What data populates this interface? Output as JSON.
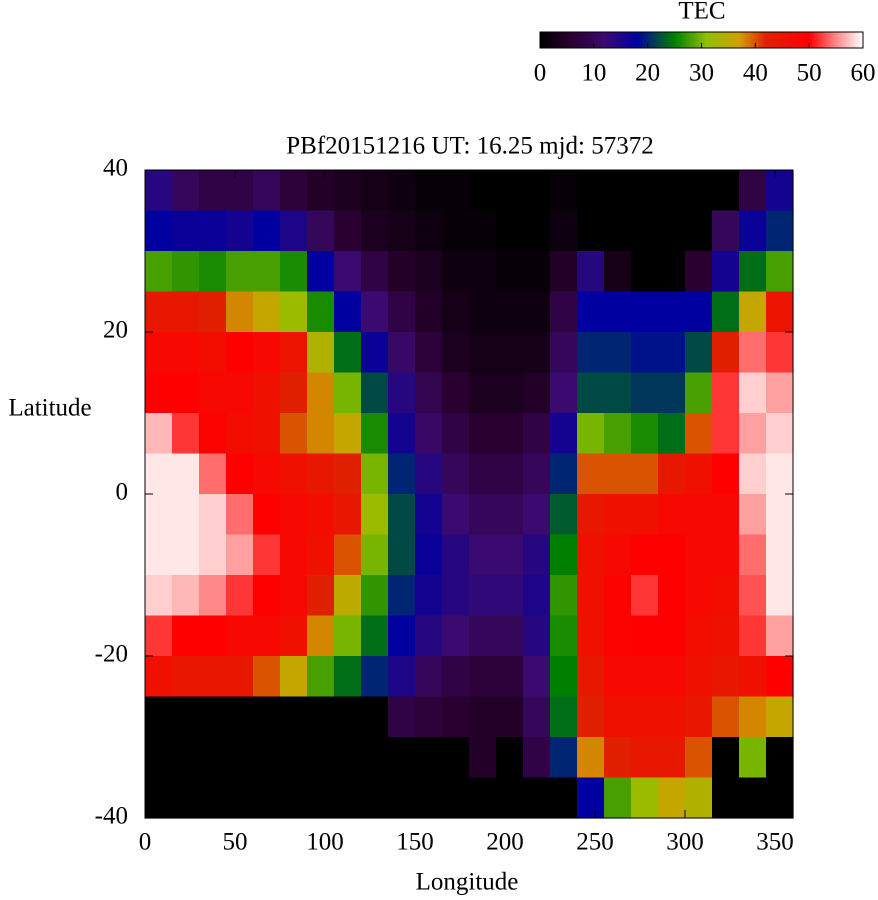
{
  "chart_data": {
    "type": "heatmap",
    "title": "PBf20151216  UT: 16.25  mjd: 57372",
    "xlabel": "Longitude",
    "ylabel": "Latitude",
    "zlabel": "TEC",
    "xlim": [
      0,
      360
    ],
    "ylim": [
      -40,
      40
    ],
    "zlim": [
      0,
      60
    ],
    "xticks": [
      0,
      50,
      100,
      150,
      200,
      250,
      300,
      350
    ],
    "yticks": [
      -40,
      -20,
      0,
      20,
      40
    ],
    "zticks": [
      0,
      10,
      20,
      30,
      40,
      50,
      60
    ],
    "colorscale": [
      [
        0,
        "#000000"
      ],
      [
        6,
        "#2a0030"
      ],
      [
        12,
        "#3a0a70"
      ],
      [
        18,
        "#0000a0"
      ],
      [
        25,
        "#008000"
      ],
      [
        31,
        "#90c000"
      ],
      [
        37,
        "#d0a000"
      ],
      [
        42,
        "#e02000"
      ],
      [
        50,
        "#ff0000"
      ],
      [
        55,
        "#ff8888"
      ],
      [
        60,
        "#ffffff"
      ]
    ],
    "x": [
      7.5,
      22.5,
      37.5,
      52.5,
      67.5,
      82.5,
      97.5,
      112.5,
      127.5,
      142.5,
      157.5,
      172.5,
      187.5,
      202.5,
      217.5,
      232.5,
      247.5,
      262.5,
      277.5,
      292.5,
      307.5,
      322.5,
      337.5,
      352.5
    ],
    "y": [
      37.5,
      32.5,
      27.5,
      22.5,
      17.5,
      12.5,
      7.5,
      2.5,
      -2.5,
      -7.5,
      -12.5,
      -17.5,
      -22.5,
      -27.5,
      -32.5,
      -37.5
    ],
    "values": [
      [
        14,
        10,
        8,
        8,
        10,
        7,
        5,
        4,
        3,
        2,
        1,
        1,
        0,
        0,
        0,
        1,
        0,
        0,
        0,
        0,
        0,
        0,
        8,
        16
      ],
      [
        18,
        17,
        17,
        16,
        18,
        15,
        10,
        6,
        4,
        3,
        2,
        1,
        1,
        0,
        0,
        2,
        0,
        0,
        0,
        0,
        0,
        10,
        17,
        20
      ],
      [
        28,
        27,
        26,
        28,
        28,
        26,
        18,
        12,
        8,
        5,
        4,
        2,
        2,
        1,
        1,
        5,
        14,
        3,
        0,
        0,
        6,
        16,
        24,
        28
      ],
      [
        44,
        44,
        42,
        38,
        36,
        32,
        26,
        18,
        12,
        8,
        5,
        3,
        2,
        2,
        2,
        8,
        18,
        18,
        18,
        18,
        18,
        24,
        36,
        45
      ],
      [
        48,
        48,
        47,
        50,
        48,
        45,
        34,
        24,
        17,
        11,
        7,
        4,
        3,
        3,
        3,
        10,
        20,
        20,
        19,
        19,
        22,
        42,
        54,
        52
      ],
      [
        50,
        50,
        48,
        48,
        46,
        42,
        38,
        30,
        22,
        14,
        9,
        6,
        4,
        4,
        5,
        12,
        22,
        22,
        21,
        21,
        28,
        52,
        58,
        56
      ],
      [
        57,
        52,
        49,
        47,
        46,
        40,
        38,
        36,
        26,
        16,
        11,
        8,
        6,
        6,
        8,
        16,
        30,
        28,
        26,
        24,
        40,
        52,
        56,
        58
      ],
      [
        59,
        59,
        54,
        50,
        48,
        46,
        44,
        42,
        30,
        20,
        14,
        10,
        8,
        8,
        10,
        20,
        40,
        40,
        40,
        44,
        46,
        50,
        58,
        59
      ],
      [
        59,
        59,
        58,
        54,
        50,
        48,
        47,
        44,
        32,
        22,
        16,
        12,
        10,
        10,
        12,
        23,
        44,
        46,
        46,
        48,
        48,
        48,
        56,
        59
      ],
      [
        59,
        59,
        58,
        56,
        52,
        48,
        46,
        40,
        30,
        22,
        17,
        14,
        12,
        12,
        14,
        25,
        46,
        48,
        50,
        50,
        48,
        48,
        54,
        59
      ],
      [
        58,
        57,
        55,
        52,
        50,
        48,
        42,
        35,
        27,
        20,
        16,
        14,
        13,
        13,
        15,
        27,
        46,
        49,
        52,
        50,
        48,
        47,
        53,
        59
      ],
      [
        52,
        50,
        50,
        48,
        48,
        46,
        38,
        30,
        24,
        18,
        14,
        12,
        10,
        10,
        14,
        26,
        46,
        49,
        50,
        50,
        47,
        46,
        52,
        56
      ],
      [
        46,
        44,
        44,
        44,
        40,
        36,
        28,
        24,
        20,
        15,
        10,
        8,
        7,
        7,
        12,
        25,
        44,
        48,
        48,
        48,
        46,
        44,
        46,
        50
      ],
      [
        0,
        0,
        0,
        0,
        0,
        0,
        0,
        0,
        0,
        8,
        7,
        6,
        5,
        5,
        10,
        24,
        42,
        46,
        46,
        46,
        44,
        40,
        38,
        36
      ],
      [
        0,
        0,
        0,
        0,
        0,
        0,
        0,
        0,
        0,
        0,
        0,
        0,
        5,
        0,
        8,
        20,
        38,
        42,
        44,
        44,
        40,
        0,
        30,
        0
      ],
      [
        0,
        0,
        0,
        0,
        0,
        0,
        0,
        0,
        0,
        0,
        0,
        0,
        0,
        0,
        0,
        0,
        18,
        28,
        32,
        36,
        34,
        0,
        0,
        0
      ]
    ]
  }
}
